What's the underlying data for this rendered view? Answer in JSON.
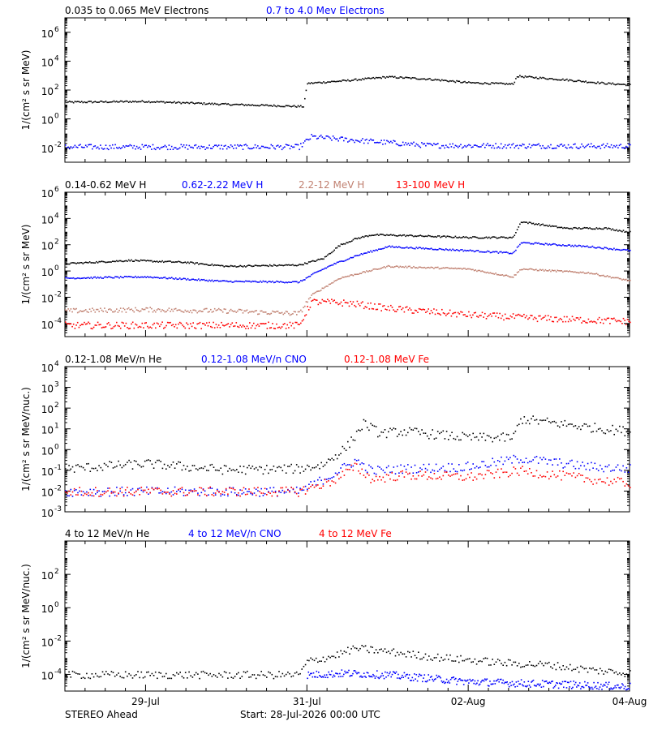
{
  "footer": {
    "spacecraft": "STEREO Ahead",
    "start": "Start: 28-Jul-2026 00:00 UTC"
  },
  "x_axis": {
    "range_days": [
      0,
      7
    ],
    "ticks": [
      {
        "day": 1,
        "label": "29-Jul"
      },
      {
        "day": 3,
        "label": "31-Jul"
      },
      {
        "day": 5,
        "label": "02-Aug"
      },
      {
        "day": 7,
        "label": "04-Aug"
      }
    ]
  },
  "chart_data": [
    {
      "type": "scatter",
      "ylabel": "1/(cm² s sr MeV)",
      "yscale": "log",
      "ylim_log10": [
        -3,
        7
      ],
      "yticks": [
        {
          "exp": -2,
          "label_base": "10",
          "label_exp": "-2"
        },
        {
          "exp": 0,
          "label_base": "10",
          "label_exp": "0"
        },
        {
          "exp": 2,
          "label_base": "10",
          "label_exp": "2"
        },
        {
          "exp": 4,
          "label_base": "10",
          "label_exp": "4"
        },
        {
          "exp": 6,
          "label_base": "10",
          "label_exp": "6"
        }
      ],
      "series": [
        {
          "name": "0.035 to 0.065 MeV Electrons",
          "color": "#000000",
          "points_log10": [
            [
              0,
              1.2
            ],
            [
              1,
              1.25
            ],
            [
              2,
              1.05
            ],
            [
              2.95,
              0.9
            ],
            [
              3.0,
              2.5
            ],
            [
              3.5,
              2.7
            ],
            [
              4,
              2.95
            ],
            [
              4.5,
              2.8
            ],
            [
              5,
              2.55
            ],
            [
              5.55,
              2.45
            ],
            [
              5.6,
              3.0
            ],
            [
              6.2,
              2.75
            ],
            [
              6.7,
              2.5
            ],
            [
              7,
              2.4
            ]
          ]
        },
        {
          "name": "0.7 to 4.0 Mev Electrons",
          "color": "#0000ff",
          "points_log10": [
            [
              0,
              -1.9
            ],
            [
              2.9,
              -1.9
            ],
            [
              3.05,
              -1.2
            ],
            [
              3.5,
              -1.4
            ],
            [
              4.5,
              -1.8
            ],
            [
              7,
              -1.85
            ]
          ]
        }
      ]
    },
    {
      "type": "scatter",
      "ylabel": "1/(cm² s sr MeV)",
      "yscale": "log",
      "ylim_log10": [
        -5,
        6
      ],
      "yticks": [
        {
          "exp": -4,
          "label_base": "10",
          "label_exp": "-4"
        },
        {
          "exp": -2,
          "label_base": "10",
          "label_exp": "-2"
        },
        {
          "exp": 0,
          "label_base": "10",
          "label_exp": "0"
        },
        {
          "exp": 2,
          "label_base": "10",
          "label_exp": "2"
        },
        {
          "exp": 4,
          "label_base": "10",
          "label_exp": "4"
        },
        {
          "exp": 6,
          "label_base": "10",
          "label_exp": "6"
        }
      ],
      "series": [
        {
          "name": "0.14-0.62 MeV H",
          "color": "#000000",
          "points_log10": [
            [
              0,
              0.6
            ],
            [
              0.8,
              0.85
            ],
            [
              1.5,
              0.7
            ],
            [
              2,
              0.4
            ],
            [
              2.9,
              0.5
            ],
            [
              3.2,
              1.0
            ],
            [
              3.4,
              2.0
            ],
            [
              3.6,
              2.5
            ],
            [
              3.8,
              2.8
            ],
            [
              4.2,
              2.75
            ],
            [
              5,
              2.6
            ],
            [
              5.55,
              2.6
            ],
            [
              5.65,
              3.8
            ],
            [
              6.2,
              3.3
            ],
            [
              6.7,
              3.3
            ],
            [
              7,
              3.0
            ]
          ]
        },
        {
          "name": "0.62-2.22 MeV H",
          "color": "#0000ff",
          "points_log10": [
            [
              0,
              -0.5
            ],
            [
              1,
              -0.4
            ],
            [
              2,
              -0.75
            ],
            [
              2.9,
              -0.8
            ],
            [
              3.1,
              -0.1
            ],
            [
              3.3,
              0.5
            ],
            [
              3.6,
              1.2
            ],
            [
              4,
              1.9
            ],
            [
              5,
              1.6
            ],
            [
              5.55,
              1.4
            ],
            [
              5.65,
              2.2
            ],
            [
              6.5,
              1.9
            ],
            [
              7,
              1.6
            ]
          ]
        },
        {
          "name": "2.2-12 MeV H",
          "color": "#c08070",
          "points_log10": [
            [
              0,
              -3.0
            ],
            [
              1,
              -2.9
            ],
            [
              2,
              -3.0
            ],
            [
              2.9,
              -3.2
            ],
            [
              3.05,
              -1.8
            ],
            [
              3.4,
              -0.5
            ],
            [
              4,
              0.4
            ],
            [
              5,
              0.2
            ],
            [
              5.55,
              -0.4
            ],
            [
              5.65,
              0.2
            ],
            [
              6.5,
              -0.1
            ],
            [
              7,
              -0.7
            ]
          ]
        },
        {
          "name": "13-100 MeV H",
          "color": "#ff0000",
          "points_log10": [
            [
              0,
              -4.1
            ],
            [
              2.9,
              -4.1
            ],
            [
              3.05,
              -2.3
            ],
            [
              3.5,
              -2.4
            ],
            [
              4,
              -2.8
            ],
            [
              5,
              -3.3
            ],
            [
              6,
              -3.6
            ],
            [
              7,
              -3.8
            ]
          ]
        }
      ]
    },
    {
      "type": "scatter",
      "ylabel": "1/(cm² s sr MeV/nuc.)",
      "yscale": "log",
      "ylim_log10": [
        -3,
        4
      ],
      "yticks": [
        {
          "exp": -3,
          "label_base": "10",
          "label_exp": "-3"
        },
        {
          "exp": -2,
          "label_base": "10",
          "label_exp": "-2"
        },
        {
          "exp": -1,
          "label_base": "10",
          "label_exp": "-1"
        },
        {
          "exp": 0,
          "label_base": "10",
          "label_exp": "0"
        },
        {
          "exp": 1,
          "label_base": "10",
          "label_exp": "1"
        },
        {
          "exp": 2,
          "label_base": "10",
          "label_exp": "2"
        },
        {
          "exp": 3,
          "label_base": "10",
          "label_exp": "3"
        },
        {
          "exp": 4,
          "label_base": "10",
          "label_exp": "4"
        }
      ],
      "series": [
        {
          "name": "0.12-1.08 MeV/n He",
          "color": "#000000",
          "points_log10": [
            [
              0,
              -0.9
            ],
            [
              1,
              -0.65
            ],
            [
              2,
              -0.95
            ],
            [
              2.9,
              -0.9
            ],
            [
              3.2,
              -0.7
            ],
            [
              3.5,
              0.2
            ],
            [
              3.7,
              1.3
            ],
            [
              3.9,
              0.8
            ],
            [
              4.2,
              0.9
            ],
            [
              5,
              0.6
            ],
            [
              5.55,
              0.6
            ],
            [
              5.65,
              1.5
            ],
            [
              6.5,
              1.1
            ],
            [
              7,
              0.9
            ]
          ]
        },
        {
          "name": "0.12-1.08 MeV/n CNO",
          "color": "#0000ff",
          "points_log10": [
            [
              0,
              -2.0
            ],
            [
              2.9,
              -2.0
            ],
            [
              3.3,
              -1.2
            ],
            [
              3.6,
              -0.5
            ],
            [
              3.8,
              -1.0
            ],
            [
              4.2,
              -0.9
            ],
            [
              5,
              -0.8
            ],
            [
              5.65,
              -0.4
            ],
            [
              6.5,
              -0.8
            ],
            [
              7,
              -0.9
            ]
          ]
        },
        {
          "name": "0.12-1.08 MeV Fe",
          "color": "#ff0000",
          "points_log10": [
            [
              0,
              -2.0
            ],
            [
              2.9,
              -2.0
            ],
            [
              3.3,
              -1.5
            ],
            [
              3.6,
              -0.8
            ],
            [
              3.8,
              -1.4
            ],
            [
              4.2,
              -1.2
            ],
            [
              5,
              -1.3
            ],
            [
              5.65,
              -1.0
            ],
            [
              6.5,
              -1.4
            ],
            [
              7,
              -1.6
            ]
          ]
        }
      ]
    },
    {
      "type": "scatter",
      "ylabel": "1/(cm² s sr MeV/nuc.)",
      "yscale": "log",
      "ylim_log10": [
        -5,
        4
      ],
      "yticks": [
        {
          "exp": -4,
          "label_base": "10",
          "label_exp": "-4"
        },
        {
          "exp": -2,
          "label_base": "10",
          "label_exp": "-2"
        },
        {
          "exp": 0,
          "label_base": "10",
          "label_exp": "0"
        },
        {
          "exp": 2,
          "label_base": "10",
          "label_exp": "2"
        }
      ],
      "series": [
        {
          "name": "4 to 12 MeV/n He",
          "color": "#000000",
          "points_log10": [
            [
              0,
              -4.0
            ],
            [
              2.9,
              -4.0
            ],
            [
              3.0,
              -3.2
            ],
            [
              3.3,
              -2.9
            ],
            [
              3.6,
              -2.4
            ],
            [
              4,
              -2.6
            ],
            [
              4.5,
              -2.9
            ],
            [
              5,
              -3.1
            ],
            [
              5.5,
              -3.3
            ],
            [
              6,
              -3.4
            ],
            [
              6.5,
              -3.7
            ],
            [
              7,
              -3.9
            ]
          ]
        },
        {
          "name": "4 to 12 MeV/n CNO",
          "color": "#0000ff",
          "points_log10": [
            [
              3.0,
              -4.0
            ],
            [
              3.5,
              -3.9
            ],
            [
              4,
              -4.0
            ],
            [
              5,
              -4.4
            ],
            [
              7,
              -4.7
            ]
          ]
        },
        {
          "name": "4 to 12 MeV Fe",
          "color": "#ff0000",
          "points_log10": []
        }
      ]
    }
  ]
}
